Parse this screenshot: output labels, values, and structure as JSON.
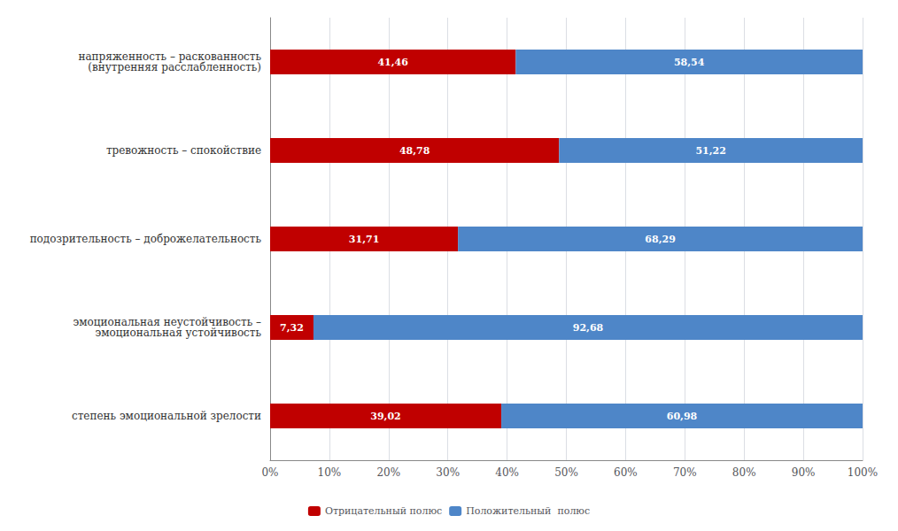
{
  "chart_data": {
    "type": "bar",
    "orientation": "horizontal",
    "stacked": true,
    "categories": [
      "степень эмоциональной зрелости",
      "эмоциональная неустойчивость –\nэмоциональная устойчивость",
      "подозрительность – доброжелательность",
      "тревожность – спокойствие",
      "напряженность – раскованность\n(внутренняя расслабленность)"
    ],
    "series": [
      {
        "name": "Отрицательный полюс",
        "color": "#c00000",
        "values": [
          39.02,
          7.32,
          31.71,
          48.78,
          41.46
        ],
        "value_labels": [
          "39,02",
          "7,32",
          "31,71",
          "48,78",
          "41,46"
        ]
      },
      {
        "name": "Положительный  полюс",
        "color": "#4e86c8",
        "values": [
          60.98,
          92.68,
          68.29,
          51.22,
          58.54
        ],
        "value_labels": [
          "60,98",
          "92,68",
          "68,29",
          "51,22",
          "58,54"
        ]
      }
    ],
    "xlim": [
      0,
      100
    ],
    "xticks": [
      {
        "value": 0,
        "label": "0%"
      },
      {
        "value": 10,
        "label": "10%"
      },
      {
        "value": 20,
        "label": "20%"
      },
      {
        "value": 30,
        "label": "30%"
      },
      {
        "value": 40,
        "label": "40%"
      },
      {
        "value": 50,
        "label": "50%"
      },
      {
        "value": 60,
        "label": "60%"
      },
      {
        "value": 70,
        "label": "70%"
      },
      {
        "value": 80,
        "label": "80%"
      },
      {
        "value": 90,
        "label": "90%"
      },
      {
        "value": 100,
        "label": "100%"
      }
    ],
    "grid": true,
    "legend": "bottom",
    "data_labels": true
  }
}
